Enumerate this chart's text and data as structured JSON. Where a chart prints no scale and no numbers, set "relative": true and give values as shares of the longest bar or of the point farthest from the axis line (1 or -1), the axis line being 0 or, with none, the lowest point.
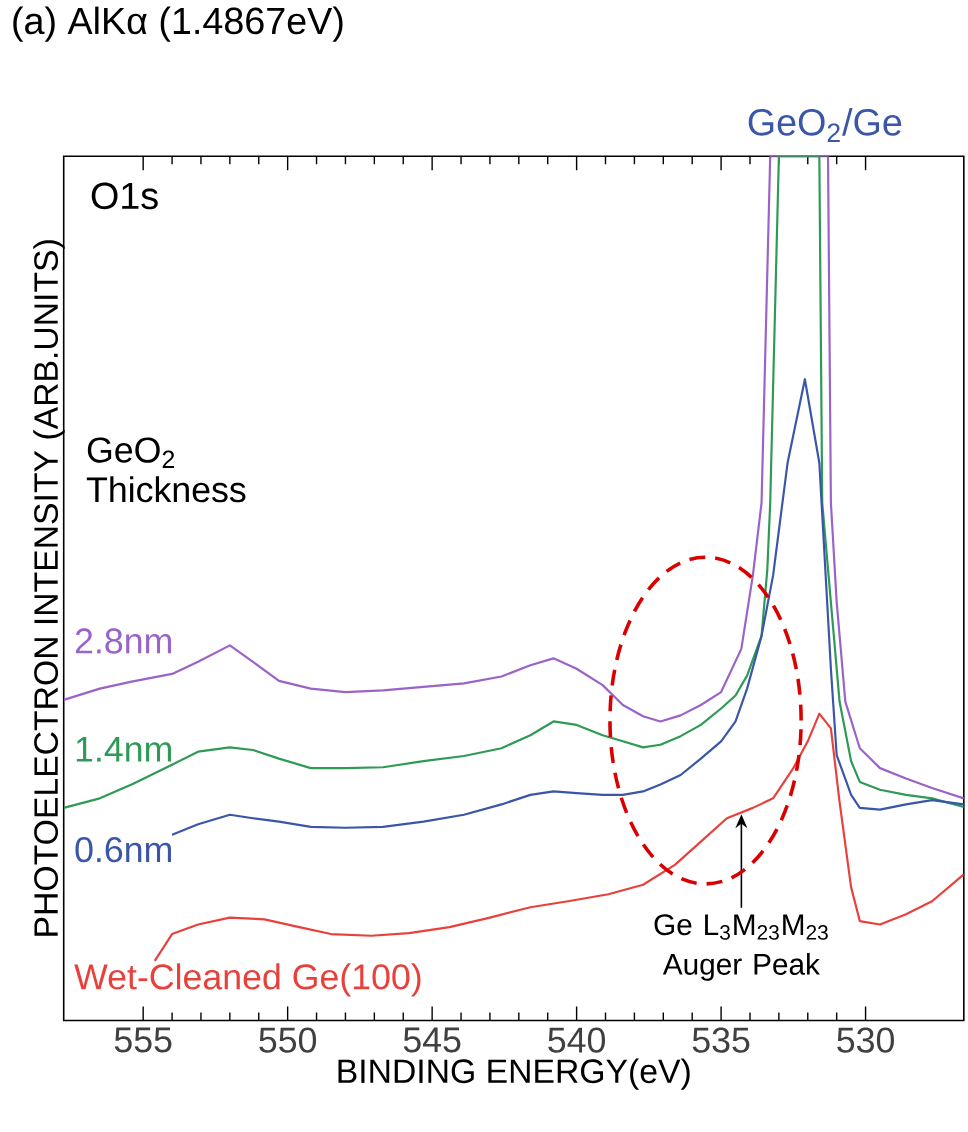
{
  "chart_data": {
    "type": "line",
    "title": "(a) AlKα (1.4867eV)",
    "xlabel": "BINDING ENERGY(eV)",
    "ylabel": "PHOTOELECTRON INTENSITY (ARB.UNITS)",
    "legend_title": "GeO$_{2}$ Thickness",
    "relative": true,
    "xlim": [
      557.75,
      526.6
    ],
    "xticks": [
      555,
      550,
      545,
      540,
      535,
      530
    ],
    "annotations": [
      "O1s",
      {
        "text": "GeO$_{2}$/Ge",
        "x": 532.1,
        "y": 1
      },
      {
        "text": "Ge L$_{3}$M$_{23}$M$_{23}$ Auger Peak",
        "x": 534.3,
        "y": 0.241
      }
    ],
    "series": [
      {
        "name": "2.8nm",
        "color": "#9b62c8",
        "x": [
          557.75,
          556.5,
          555.4,
          554.0,
          553.1,
          552.0,
          551.2,
          550.3,
          549.2,
          548.0,
          546.7,
          545.3,
          543.9,
          542.6,
          541.6,
          540.8,
          540.0,
          539.1,
          538.4,
          537.7,
          537.1,
          536.4,
          535.7,
          535.0,
          534.3,
          533.9,
          533.6,
          533.3,
          531.3,
          531.2,
          531.0,
          530.7,
          530.2,
          529.5,
          528.6,
          527.7,
          526.6
        ],
        "values": [
          0.371,
          0.384,
          0.392,
          0.401,
          0.415,
          0.434,
          0.415,
          0.393,
          0.384,
          0.38,
          0.382,
          0.386,
          0.39,
          0.398,
          0.411,
          0.419,
          0.407,
          0.388,
          0.365,
          0.352,
          0.346,
          0.353,
          0.365,
          0.38,
          0.43,
          0.515,
          0.599,
          1,
          1,
          0.599,
          0.484,
          0.369,
          0.315,
          0.292,
          0.28,
          0.269,
          0.257
        ]
      },
      {
        "name": "1.4nm",
        "color": "#2e9a55",
        "x": [
          557.75,
          556.5,
          555.4,
          554.0,
          553.1,
          552.0,
          551.2,
          550.3,
          549.2,
          548.0,
          546.7,
          545.3,
          543.9,
          542.6,
          541.6,
          540.8,
          540.0,
          539.1,
          538.4,
          537.7,
          537.1,
          536.4,
          535.7,
          535.0,
          534.5,
          534.1,
          533.6,
          533.4,
          533.3,
          533.0,
          531.6,
          531.5,
          531.2,
          530.9,
          530.5,
          530.2,
          529.5,
          528.6,
          527.7,
          526.6
        ],
        "values": [
          0.246,
          0.257,
          0.273,
          0.296,
          0.311,
          0.316,
          0.313,
          0.303,
          0.292,
          0.292,
          0.293,
          0.3,
          0.306,
          0.315,
          0.33,
          0.346,
          0.342,
          0.33,
          0.323,
          0.316,
          0.319,
          0.329,
          0.342,
          0.361,
          0.376,
          0.399,
          0.445,
          0.522,
          0.599,
          1,
          1,
          0.599,
          0.484,
          0.369,
          0.3,
          0.276,
          0.267,
          0.261,
          0.257,
          0.247
        ]
      },
      {
        "name": "0.6nm",
        "color": "#3a56a8",
        "x": [
          554.0,
          553.1,
          552.0,
          551.2,
          550.3,
          549.2,
          548.0,
          546.7,
          545.3,
          543.9,
          542.6,
          541.6,
          540.8,
          540.0,
          539.1,
          538.4,
          537.7,
          537.1,
          536.4,
          535.7,
          535.0,
          534.5,
          534.1,
          533.6,
          533.2,
          532.7,
          532.1,
          531.6,
          531.2,
          531.0,
          530.5,
          530.2,
          529.5,
          528.6,
          527.7,
          526.6
        ],
        "values": [
          0.215,
          0.227,
          0.238,
          0.234,
          0.23,
          0.224,
          0.223,
          0.224,
          0.23,
          0.238,
          0.25,
          0.261,
          0.265,
          0.263,
          0.261,
          0.261,
          0.265,
          0.273,
          0.284,
          0.303,
          0.323,
          0.346,
          0.384,
          0.445,
          0.515,
          0.645,
          0.742,
          0.645,
          0.407,
          0.307,
          0.261,
          0.246,
          0.244,
          0.25,
          0.255,
          0.25
        ]
      },
      {
        "name": "Wet-Cleaned Ge(100)",
        "color": "#e8413c",
        "x": [
          554.6,
          554.0,
          553.1,
          552.0,
          550.8,
          549.6,
          548.5,
          547.1,
          545.8,
          544.4,
          543.0,
          541.6,
          540.3,
          538.9,
          537.7,
          536.6,
          535.7,
          534.8,
          533.9,
          533.2,
          532.5,
          532.0,
          531.6,
          531.2,
          530.9,
          530.5,
          530.2,
          529.5,
          528.6,
          527.7,
          526.6
        ],
        "values": [
          0.069,
          0.1,
          0.111,
          0.119,
          0.117,
          0.108,
          0.1,
          0.098,
          0.101,
          0.108,
          0.119,
          0.131,
          0.138,
          0.146,
          0.157,
          0.18,
          0.207,
          0.234,
          0.246,
          0.257,
          0.292,
          0.323,
          0.355,
          0.338,
          0.253,
          0.154,
          0.115,
          0.111,
          0.123,
          0.138,
          0.169
        ]
      }
    ]
  }
}
